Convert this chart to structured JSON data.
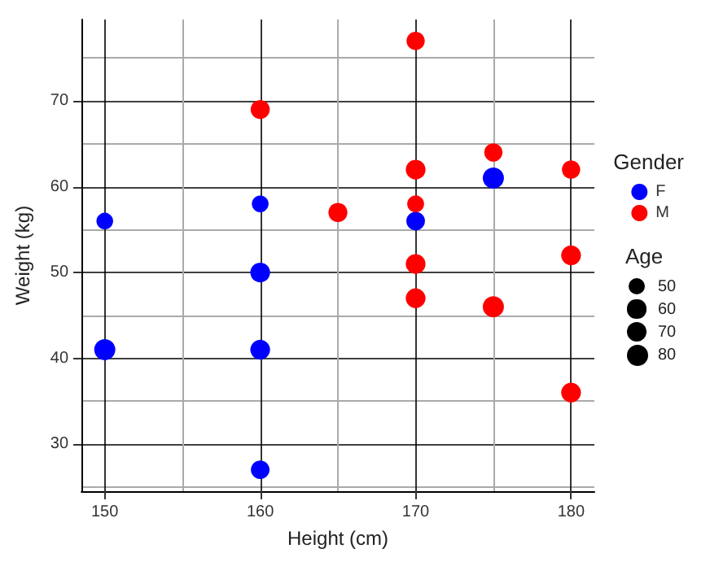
{
  "chart_data": {
    "type": "bubble",
    "xlabel": "Height (cm)",
    "ylabel": "Weight (kg)",
    "xlim": [
      148.5,
      181.5
    ],
    "xticks": [
      150,
      160,
      170,
      180
    ],
    "ylim": [
      24.5,
      79.5
    ],
    "yticks": [
      30,
      40,
      50,
      60,
      70
    ],
    "grid": true,
    "legend": "right",
    "legend_title": "Gender",
    "annotations": [
      "Age"
    ],
    "size_legend": [
      50,
      60,
      70,
      80
    ],
    "series": [
      {
        "name": "F",
        "color": "#0000ff",
        "x": [
          150,
          150,
          160,
          160,
          160,
          160,
          170,
          175
        ],
        "values": [
          56,
          41,
          58,
          50,
          41,
          27,
          56,
          61
        ],
        "sizes": [
          50,
          80,
          50,
          70,
          70,
          62,
          62,
          80
        ]
      },
      {
        "name": "M",
        "color": "#ff0000",
        "x": [
          160,
          165,
          170,
          170,
          170,
          170,
          170,
          175,
          175,
          180,
          180,
          180
        ],
        "values": [
          69,
          57,
          77,
          62,
          58,
          51,
          47,
          64,
          46,
          62,
          52,
          36
        ],
        "sizes": [
          65,
          65,
          60,
          70,
          51,
          70,
          70,
          60,
          80,
          60,
          70,
          70
        ]
      }
    ]
  }
}
